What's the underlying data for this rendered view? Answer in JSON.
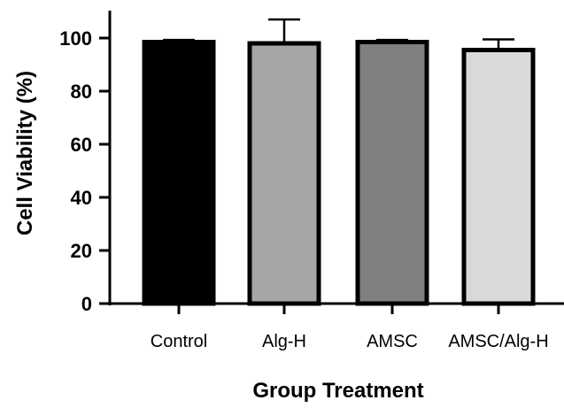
{
  "chart_data": {
    "type": "bar",
    "title": "",
    "xlabel": "Group Treatment",
    "ylabel": "Cell Viability (%)",
    "ylim": [
      0,
      110
    ],
    "yticks": [
      0,
      20,
      40,
      60,
      80,
      100
    ],
    "ytick_labels": [
      "0",
      "20",
      "40",
      "60",
      "80",
      "100"
    ],
    "categories": [
      "Control",
      "Alg-H",
      "AMSC",
      "AMSC/Alg-H"
    ],
    "values": [
      98.5,
      98,
      98.5,
      95.5
    ],
    "errors": [
      0.8,
      9,
      0.8,
      4
    ],
    "colors": [
      "#000000",
      "#a6a6a6",
      "#808080",
      "#d9d9d9"
    ],
    "grid": false,
    "legend": "none"
  }
}
